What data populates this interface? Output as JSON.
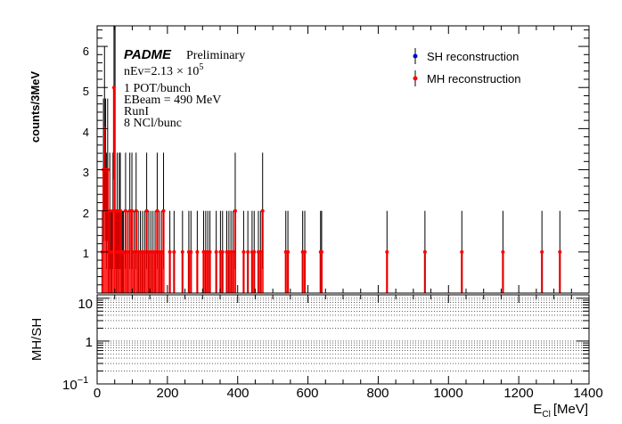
{
  "chart_data": [
    {
      "type": "histogram",
      "ylabel": "counts/3MeV",
      "xlim": [
        0,
        1400
      ],
      "ylim": [
        0,
        6.5
      ],
      "yticks": [
        "1",
        "2",
        "3",
        "4",
        "5",
        "6"
      ],
      "annotation": {
        "experiment": "PADME",
        "status": "Preliminary",
        "nev_base": "nEv=2.13",
        "nev_times": "× 10",
        "nev_exp": "5",
        "lines": [
          "1 POT/bunch",
          "EBeam = 490 MeV",
          "RunI",
          "8 NCl/bunc"
        ]
      },
      "legend": {
        "position": "top-right",
        "entries": [
          {
            "name": "SH reconstruction",
            "color": "#0000cc"
          },
          {
            "name": "MH reconstruction",
            "color": "#ff0000"
          }
        ]
      },
      "series": [
        {
          "name": "MH reconstruction",
          "color": "#ff0000",
          "x": [
            15,
            18,
            21,
            24,
            27,
            30,
            33,
            36,
            39,
            42,
            45,
            48,
            51,
            54,
            57,
            60,
            63,
            66,
            69,
            72,
            75,
            81,
            87,
            93,
            99,
            105,
            111,
            117,
            123,
            129,
            135,
            141,
            147,
            153,
            159,
            165,
            171,
            177,
            183,
            189,
            207,
            219,
            243,
            261,
            267,
            285,
            303,
            309,
            315,
            321,
            339,
            351,
            357,
            369,
            375,
            381,
            387,
            393,
            417,
            429,
            441,
            447,
            459,
            465,
            471,
            537,
            543,
            585,
            591,
            636,
            639,
            825,
            933,
            1038,
            1155,
            1266,
            1317
          ],
          "values": [
            1,
            3,
            4,
            3,
            2,
            3,
            1,
            2,
            1,
            1,
            2,
            5,
            2,
            1,
            2,
            1,
            2,
            2,
            1,
            1,
            1,
            2,
            1,
            2,
            2,
            1,
            2,
            1,
            1,
            1,
            1,
            2,
            1,
            1,
            1,
            1,
            2,
            1,
            1,
            2,
            1,
            1,
            1,
            1,
            1,
            1,
            1,
            1,
            1,
            1,
            1,
            1,
            1,
            1,
            1,
            1,
            1,
            2,
            1,
            1,
            1,
            1,
            1,
            1,
            2,
            1,
            1,
            1,
            1,
            1,
            1,
            1,
            1,
            1,
            1,
            1,
            1
          ]
        }
      ],
      "tall_error_bar_x": 51
    },
    {
      "type": "ratio",
      "ylabel": "MH/SH",
      "xlabel_main": "E",
      "xlabel_sub": "Cl",
      "xlabel_unit": "[MeV]",
      "xlim": [
        0,
        1400
      ],
      "ylim_log": [
        0.1,
        12
      ],
      "yticks": [
        {
          "value": 10,
          "label": "10"
        },
        {
          "value": 1,
          "label": "1"
        },
        {
          "value": 0.1,
          "label_base": "10",
          "label_exp": "−1"
        }
      ],
      "xticks": [
        "0",
        "200",
        "400",
        "600",
        "800",
        "1000",
        "1200",
        "1400"
      ],
      "grid": true
    }
  ]
}
